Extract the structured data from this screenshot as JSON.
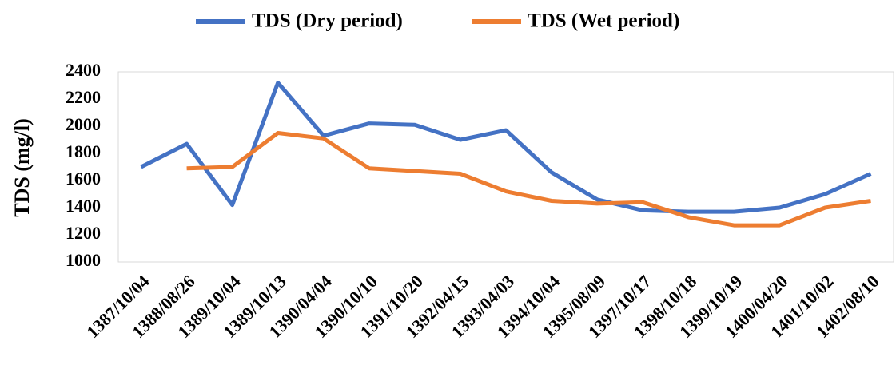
{
  "chart_data": {
    "type": "line",
    "y_label": "TDS (mg/l)",
    "categories": [
      "1387/10/04",
      "1388/08/26",
      "1389/10/04",
      "1389/10/13",
      "1390/04/04",
      "1390/10/10",
      "1391/10/20",
      "1392/04/15",
      "1393/04/03",
      "1394/10/04",
      "1395/08/09",
      "1397/10/17",
      "1398/10/18",
      "1399/10/19",
      "1400/04/20",
      "1401/10/02",
      "1402/08/10"
    ],
    "series": [
      {
        "name": "TDS (Dry period)",
        "color": "#4472c4",
        "values": [
          1700,
          1870,
          1420,
          2320,
          1930,
          2020,
          2010,
          1900,
          1970,
          1660,
          1460,
          1380,
          1370,
          1370,
          1400,
          1500,
          1650
        ]
      },
      {
        "name": "TDS (Wet period)",
        "color": "#ed7d31",
        "values": [
          null,
          1690,
          1700,
          1950,
          1910,
          1690,
          1670,
          1650,
          1520,
          1450,
          1430,
          1440,
          1330,
          1270,
          1270,
          1400,
          1450
        ]
      }
    ],
    "ylim": [
      1000,
      2400
    ],
    "yticks": [
      1000,
      1200,
      1400,
      1600,
      1800,
      2000,
      2200,
      2400
    ],
    "grid": false,
    "legend": "top"
  }
}
